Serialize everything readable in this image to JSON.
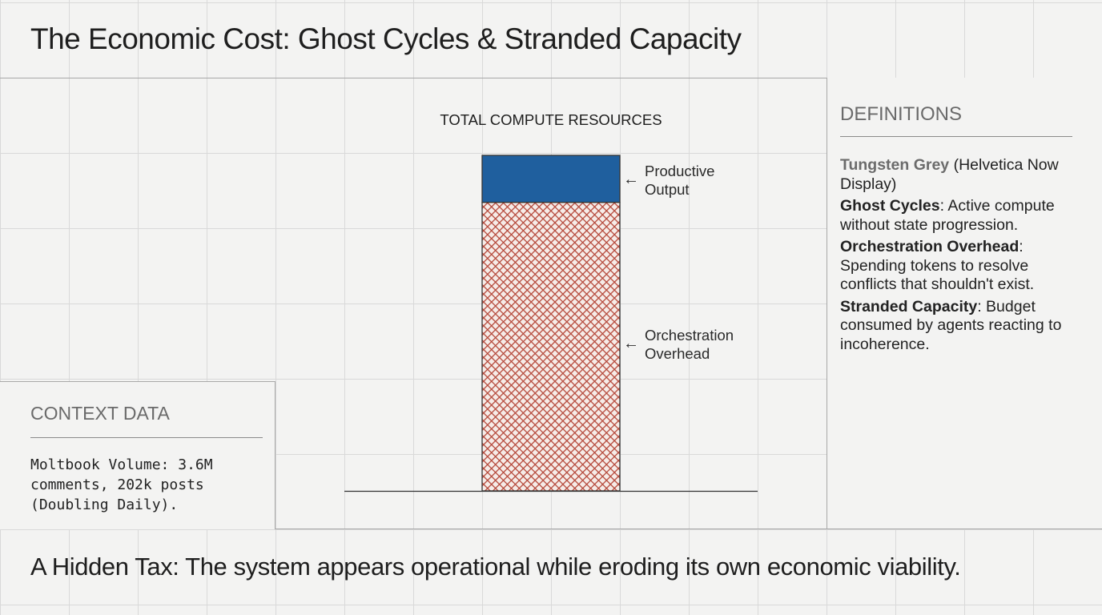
{
  "title": "The Economic Cost: Ghost Cycles & Stranded Capacity",
  "footer": "A Hidden Tax: The system appears operational while eroding its own economic viability.",
  "context": {
    "heading": "CONTEXT DATA",
    "text": "Moltbook Volume: 3.6M comments, 202k posts (Doubling Daily)."
  },
  "definitions": {
    "heading": "DEFINITIONS",
    "items": [
      {
        "term": "Tungsten Grey",
        "text": " (Helvetica Now Display)"
      },
      {
        "term": "Ghost Cycles",
        "text": ": Active compute without state progression."
      },
      {
        "term": "Orchestration Overhead",
        "text": ": Spending tokens to resolve conflicts that shouldn't exist."
      },
      {
        "term": "Stranded Capacity",
        "text": ": Budget consumed by agents reacting to incoherence."
      }
    ]
  },
  "chart_data": {
    "type": "bar",
    "stacked": true,
    "title": "TOTAL COMPUTE RESOURCES",
    "categories": [
      ""
    ],
    "series": [
      {
        "name": "Orchestration Overhead",
        "values": [
          86
        ],
        "color": "#b5483a",
        "pattern": "crosshatch"
      },
      {
        "name": "Productive Output",
        "values": [
          14
        ],
        "color": "#1f5f9e"
      }
    ],
    "ylim": [
      0,
      100
    ],
    "grid": true,
    "legend": "right-of-bar annotations with arrows"
  }
}
